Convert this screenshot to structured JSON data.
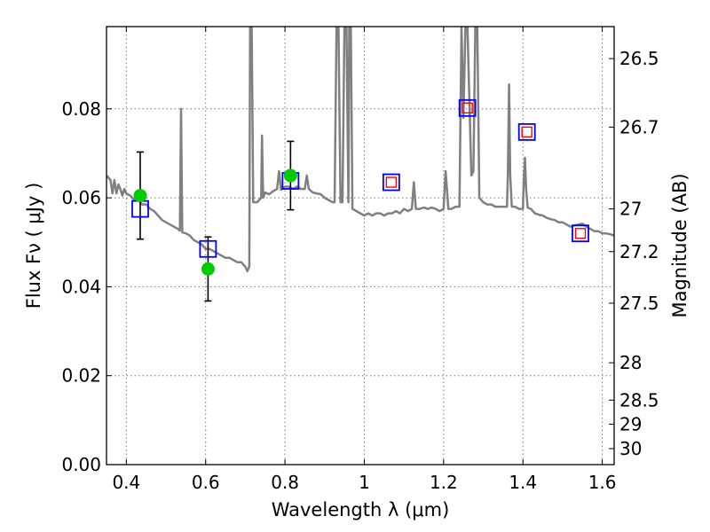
{
  "chart_data": {
    "type": "scatter",
    "title": "",
    "xlabel": "Wavelength  λ (μm)",
    "ylabel": "Flux  Fν  ( μJy )",
    "ylabel_right": "Magnitude (AB)",
    "xlim": [
      0.35,
      1.63
    ],
    "ylim": [
      0.0,
      0.0985
    ],
    "x_ticks": [
      0.4,
      0.6,
      0.8,
      1.0,
      1.2,
      1.4,
      1.6
    ],
    "x_tick_labels": [
      "0.4",
      "0.6",
      "0.8",
      "1",
      "1.2",
      "1.4",
      "1.6"
    ],
    "y_ticks": [
      0.0,
      0.02,
      0.04,
      0.06,
      0.08
    ],
    "y_tick_labels": [
      "0.00",
      "0.02",
      "0.04",
      "0.06",
      "0.08"
    ],
    "right_ticks": [
      {
        "label": "26.5",
        "flux": 0.0913
      },
      {
        "label": "26.7",
        "flux": 0.0759
      },
      {
        "label": "27",
        "flux": 0.0575
      },
      {
        "label": "27.2",
        "flux": 0.0479
      },
      {
        "label": "27.5",
        "flux": 0.0363
      },
      {
        "label": "28",
        "flux": 0.0229
      },
      {
        "label": "28.5",
        "flux": 0.0145
      },
      {
        "label": "29",
        "flux": 0.0091
      },
      {
        "label": "30",
        "flux": 0.0036
      }
    ],
    "grid": true,
    "legend": "none",
    "series": [
      {
        "type": "line",
        "color": "#808080",
        "points": [
          [
            0.35,
            0.065
          ],
          [
            0.36,
            0.064
          ],
          [
            0.365,
            0.061
          ],
          [
            0.37,
            0.064
          ],
          [
            0.375,
            0.061
          ],
          [
            0.38,
            0.063
          ],
          [
            0.385,
            0.062
          ],
          [
            0.39,
            0.0605
          ],
          [
            0.395,
            0.062
          ],
          [
            0.4,
            0.061
          ],
          [
            0.41,
            0.0605
          ],
          [
            0.42,
            0.0595
          ],
          [
            0.43,
            0.0595
          ],
          [
            0.44,
            0.0585
          ],
          [
            0.45,
            0.0585
          ],
          [
            0.46,
            0.0575
          ],
          [
            0.47,
            0.057
          ],
          [
            0.48,
            0.056
          ],
          [
            0.49,
            0.055
          ],
          [
            0.5,
            0.0545
          ],
          [
            0.51,
            0.054
          ],
          [
            0.52,
            0.0535
          ],
          [
            0.53,
            0.053
          ],
          [
            0.535,
            0.0526
          ],
          [
            0.538,
            0.08
          ],
          [
            0.541,
            0.0522
          ],
          [
            0.55,
            0.052
          ],
          [
            0.56,
            0.0515
          ],
          [
            0.57,
            0.0505
          ],
          [
            0.58,
            0.05
          ],
          [
            0.59,
            0.0495
          ],
          [
            0.6,
            0.0485
          ],
          [
            0.61,
            0.0485
          ],
          [
            0.62,
            0.048
          ],
          [
            0.63,
            0.0475
          ],
          [
            0.64,
            0.047
          ],
          [
            0.65,
            0.0465
          ],
          [
            0.66,
            0.0465
          ],
          [
            0.67,
            0.046
          ],
          [
            0.68,
            0.0455
          ],
          [
            0.69,
            0.0455
          ],
          [
            0.7,
            0.0445
          ],
          [
            0.705,
            0.0435
          ],
          [
            0.71,
            0.0445
          ],
          [
            0.712,
            0.0985
          ],
          [
            0.716,
            0.0985
          ],
          [
            0.72,
            0.059
          ],
          [
            0.73,
            0.059
          ],
          [
            0.735,
            0.0595
          ],
          [
            0.74,
            0.06
          ],
          [
            0.742,
            0.074
          ],
          [
            0.745,
            0.06
          ],
          [
            0.75,
            0.0612
          ],
          [
            0.76,
            0.0608
          ],
          [
            0.77,
            0.0615
          ],
          [
            0.78,
            0.062
          ],
          [
            0.785,
            0.066
          ],
          [
            0.79,
            0.0618
          ],
          [
            0.8,
            0.0625
          ],
          [
            0.81,
            0.0625
          ],
          [
            0.82,
            0.062
          ],
          [
            0.83,
            0.0625
          ],
          [
            0.84,
            0.062
          ],
          [
            0.85,
            0.062
          ],
          [
            0.855,
            0.065
          ],
          [
            0.86,
            0.062
          ],
          [
            0.87,
            0.0612
          ],
          [
            0.88,
            0.061
          ],
          [
            0.89,
            0.0608
          ],
          [
            0.9,
            0.06
          ],
          [
            0.91,
            0.0595
          ],
          [
            0.92,
            0.059
          ],
          [
            0.925,
            0.059
          ],
          [
            0.93,
            0.0985
          ],
          [
            0.935,
            0.0985
          ],
          [
            0.94,
            0.059
          ],
          [
            0.945,
            0.059
          ],
          [
            0.95,
            0.0985
          ],
          [
            0.955,
            0.0985
          ],
          [
            0.96,
            0.059
          ],
          [
            0.962,
            0.0985
          ],
          [
            0.966,
            0.0985
          ],
          [
            0.97,
            0.0575
          ],
          [
            0.98,
            0.057
          ],
          [
            0.99,
            0.0565
          ],
          [
            1.0,
            0.056
          ],
          [
            1.01,
            0.0565
          ],
          [
            1.02,
            0.056
          ],
          [
            1.03,
            0.0565
          ],
          [
            1.04,
            0.0565
          ],
          [
            1.05,
            0.056
          ],
          [
            1.06,
            0.0565
          ],
          [
            1.07,
            0.0565
          ],
          [
            1.08,
            0.057
          ],
          [
            1.09,
            0.0565
          ],
          [
            1.1,
            0.0575
          ],
          [
            1.11,
            0.057
          ],
          [
            1.12,
            0.0575
          ],
          [
            1.125,
            0.0635
          ],
          [
            1.13,
            0.0575
          ],
          [
            1.14,
            0.0575
          ],
          [
            1.15,
            0.0578
          ],
          [
            1.16,
            0.0575
          ],
          [
            1.17,
            0.0578
          ],
          [
            1.18,
            0.0575
          ],
          [
            1.19,
            0.057
          ],
          [
            1.2,
            0.0575
          ],
          [
            1.205,
            0.066
          ],
          [
            1.212,
            0.0575
          ],
          [
            1.22,
            0.0575
          ],
          [
            1.23,
            0.058
          ],
          [
            1.24,
            0.058
          ],
          [
            1.245,
            0.0985
          ],
          [
            1.25,
            0.078
          ],
          [
            1.255,
            0.0985
          ],
          [
            1.26,
            0.0985
          ],
          [
            1.265,
            0.082
          ],
          [
            1.27,
            0.065
          ],
          [
            1.275,
            0.066
          ],
          [
            1.28,
            0.0985
          ],
          [
            1.285,
            0.0985
          ],
          [
            1.29,
            0.06
          ],
          [
            1.3,
            0.059
          ],
          [
            1.31,
            0.0585
          ],
          [
            1.32,
            0.0585
          ],
          [
            1.33,
            0.058
          ],
          [
            1.34,
            0.058
          ],
          [
            1.35,
            0.058
          ],
          [
            1.36,
            0.058
          ],
          [
            1.362,
            0.065
          ],
          [
            1.365,
            0.0855
          ],
          [
            1.368,
            0.065
          ],
          [
            1.372,
            0.058
          ],
          [
            1.38,
            0.058
          ],
          [
            1.39,
            0.0575
          ],
          [
            1.4,
            0.0575
          ],
          [
            1.402,
            0.0635
          ],
          [
            1.405,
            0.069
          ],
          [
            1.408,
            0.062
          ],
          [
            1.412,
            0.0578
          ],
          [
            1.42,
            0.0575
          ],
          [
            1.43,
            0.0565
          ],
          [
            1.44,
            0.0562
          ],
          [
            1.45,
            0.056
          ],
          [
            1.46,
            0.0555
          ],
          [
            1.47,
            0.0552
          ],
          [
            1.48,
            0.055
          ],
          [
            1.49,
            0.0545
          ],
          [
            1.5,
            0.0545
          ],
          [
            1.51,
            0.054
          ],
          [
            1.52,
            0.0535
          ],
          [
            1.53,
            0.0538
          ],
          [
            1.54,
            0.054
          ],
          [
            1.55,
            0.0542
          ],
          [
            1.56,
            0.0535
          ],
          [
            1.57,
            0.053
          ],
          [
            1.58,
            0.0525
          ],
          [
            1.59,
            0.0525
          ],
          [
            1.6,
            0.052
          ],
          [
            1.61,
            0.052
          ],
          [
            1.62,
            0.0518
          ],
          [
            1.63,
            0.0515
          ]
        ]
      },
      {
        "type": "errorbar",
        "color": "#00cc00",
        "points": [
          {
            "x": 0.435,
            "y": 0.0605,
            "yerr": [
              0.0098,
              0.0098
            ]
          },
          {
            "x": 0.606,
            "y": 0.044,
            "yerr": [
              0.0072,
              0.0072
            ]
          },
          {
            "x": 0.814,
            "y": 0.065,
            "yerr": [
              0.0077,
              0.0077
            ]
          }
        ]
      },
      {
        "type": "scatter",
        "marker": "open-square",
        "color": "#0000ff",
        "points": [
          [
            0.435,
            0.0575
          ],
          [
            0.606,
            0.0485
          ],
          [
            0.814,
            0.0638
          ],
          [
            1.068,
            0.0635
          ],
          [
            1.26,
            0.0802
          ],
          [
            1.41,
            0.0748
          ],
          [
            1.545,
            0.052
          ]
        ]
      },
      {
        "type": "scatter",
        "marker": "open-square-small",
        "color": "#ff0000",
        "points": [
          [
            1.068,
            0.0635
          ],
          [
            1.26,
            0.0802
          ],
          [
            1.41,
            0.0748
          ],
          [
            1.545,
            0.052
          ]
        ]
      }
    ]
  }
}
